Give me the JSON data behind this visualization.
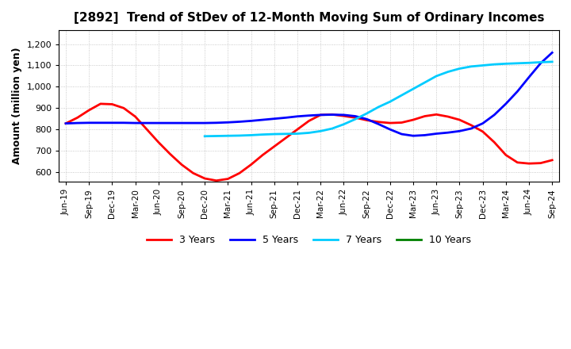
{
  "title": "[2892]  Trend of StDev of 12-Month Moving Sum of Ordinary Incomes",
  "ylabel": "Amount (million yen)",
  "background_color": "#ffffff",
  "grid_color": "#aaaaaa",
  "ylim": [
    555,
    1265
  ],
  "yticks": [
    600,
    700,
    800,
    900,
    1000,
    1100,
    1200
  ],
  "xtick_labels": [
    "Jun-19",
    "Sep-19",
    "Dec-19",
    "Mar-20",
    "Jun-20",
    "Sep-20",
    "Dec-20",
    "Mar-21",
    "Jun-21",
    "Sep-21",
    "Dec-21",
    "Mar-22",
    "Jun-22",
    "Sep-22",
    "Dec-22",
    "Mar-23",
    "Jun-23",
    "Sep-23",
    "Dec-23",
    "Mar-24",
    "Jun-24",
    "Sep-24"
  ],
  "series": {
    "3 Years": {
      "color": "#ff0000",
      "x": [
        0,
        0.5,
        1,
        1.5,
        2,
        2.5,
        3,
        3.5,
        4,
        4.5,
        5,
        5.5,
        6,
        6.5,
        7,
        7.5,
        8,
        8.5,
        9,
        9.5,
        10,
        10.5,
        11,
        11.5,
        12,
        12.5,
        13,
        13.5,
        14,
        14.5,
        15,
        15.5,
        16,
        16.5,
        17,
        17.5,
        18,
        18.5,
        19,
        19.5,
        20,
        20.5,
        21
      ],
      "y": [
        828,
        855,
        890,
        920,
        918,
        900,
        860,
        800,
        740,
        685,
        635,
        595,
        570,
        560,
        568,
        595,
        635,
        680,
        720,
        760,
        800,
        840,
        868,
        870,
        863,
        855,
        843,
        835,
        830,
        832,
        845,
        862,
        870,
        860,
        845,
        820,
        790,
        740,
        680,
        645,
        640,
        642,
        656
      ]
    },
    "5 Years": {
      "color": "#0000ff",
      "x": [
        0,
        0.5,
        1,
        1.5,
        2,
        2.5,
        3,
        3.5,
        4,
        4.5,
        5,
        5.5,
        6,
        6.5,
        7,
        7.5,
        8,
        8.5,
        9,
        9.5,
        10,
        10.5,
        11,
        11.5,
        12,
        12.5,
        13,
        13.5,
        14,
        14.5,
        15,
        15.5,
        16,
        16.5,
        17,
        17.5,
        18,
        18.5,
        19,
        19.5,
        20,
        20.5,
        21
      ],
      "y": [
        828,
        830,
        831,
        831,
        831,
        831,
        830,
        830,
        830,
        830,
        830,
        830,
        830,
        831,
        833,
        836,
        840,
        845,
        850,
        855,
        861,
        865,
        868,
        869,
        868,
        862,
        848,
        825,
        800,
        778,
        770,
        773,
        780,
        785,
        792,
        804,
        828,
        868,
        920,
        978,
        1045,
        1110,
        1160
      ]
    },
    "7 Years": {
      "color": "#00ccff",
      "x": [
        6,
        6.5,
        7,
        7.5,
        8,
        8.5,
        9,
        9.5,
        10,
        10.5,
        11,
        11.5,
        12,
        12.5,
        13,
        13.5,
        14,
        14.5,
        15,
        15.5,
        16,
        16.5,
        17,
        17.5,
        18,
        18.5,
        19,
        19.5,
        20,
        20.5,
        21
      ],
      "y": [
        768,
        769,
        770,
        771,
        773,
        776,
        778,
        779,
        780,
        784,
        792,
        804,
        824,
        848,
        875,
        905,
        930,
        960,
        990,
        1020,
        1050,
        1070,
        1085,
        1095,
        1100,
        1105,
        1108,
        1110,
        1112,
        1115,
        1117
      ]
    },
    "10 Years": {
      "color": "#008000",
      "x": [],
      "y": []
    }
  },
  "legend_labels": [
    "3 Years",
    "5 Years",
    "7 Years",
    "10 Years"
  ],
  "legend_colors": [
    "#ff0000",
    "#0000ff",
    "#00ccff",
    "#008000"
  ]
}
